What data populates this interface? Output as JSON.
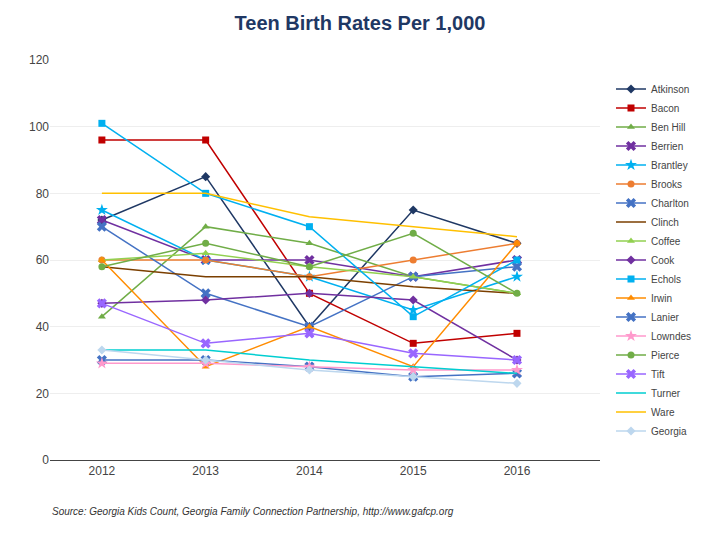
{
  "chart_data": {
    "type": "line",
    "title": "Teen Birth Rates Per 1,000",
    "x": [
      2012,
      2013,
      2014,
      2015,
      2016
    ],
    "series": [
      {
        "name": "Atkinson",
        "color": "#1F3864",
        "marker": "diamond",
        "values": [
          72,
          85,
          40,
          75,
          65
        ]
      },
      {
        "name": "Bacon",
        "color": "#C00000",
        "marker": "square",
        "values": [
          96,
          96,
          50,
          35,
          38
        ]
      },
      {
        "name": "Ben Hill",
        "color": "#70AD47",
        "marker": "triangle-up",
        "values": [
          43,
          70,
          65,
          55,
          50
        ]
      },
      {
        "name": "Berrien",
        "color": "#7030A0",
        "marker": "x",
        "values": [
          72,
          60,
          60,
          55,
          60
        ]
      },
      {
        "name": "Brantley",
        "color": "#00B0F0",
        "marker": "star",
        "values": [
          75,
          60,
          55,
          45,
          55
        ]
      },
      {
        "name": "Brooks",
        "color": "#ED7D31",
        "marker": "circle",
        "values": [
          60,
          60,
          55,
          60,
          65
        ]
      },
      {
        "name": "Charlton",
        "color": "#4472C4",
        "marker": "x",
        "values": [
          70,
          50,
          40,
          55,
          58
        ]
      },
      {
        "name": "Clinch",
        "color": "#7B3F00",
        "marker": "none",
        "values": [
          58,
          55,
          55,
          52,
          50
        ]
      },
      {
        "name": "Coffee",
        "color": "#92D050",
        "marker": "triangle-up",
        "values": [
          60,
          62,
          58,
          55,
          50
        ]
      },
      {
        "name": "Cook",
        "color": "#7030A0",
        "marker": "diamond",
        "values": [
          47,
          48,
          50,
          48,
          30
        ]
      },
      {
        "name": "Echols",
        "color": "#00B0F0",
        "marker": "square",
        "values": [
          101,
          80,
          70,
          43,
          60
        ]
      },
      {
        "name": "Irwin",
        "color": "#FF8C00",
        "marker": "triangle-up",
        "values": [
          60,
          28,
          40,
          28,
          65
        ]
      },
      {
        "name": "Lanier",
        "color": "#4472C4",
        "marker": "x",
        "values": [
          30,
          30,
          28,
          25,
          26
        ]
      },
      {
        "name": "Lowndes",
        "color": "#FF99CC",
        "marker": "star",
        "values": [
          29,
          29,
          28,
          27,
          27
        ]
      },
      {
        "name": "Pierce",
        "color": "#70AD47",
        "marker": "circle",
        "values": [
          58,
          65,
          58,
          68,
          50
        ]
      },
      {
        "name": "Tift",
        "color": "#9966FF",
        "marker": "x",
        "values": [
          47,
          35,
          38,
          32,
          30
        ]
      },
      {
        "name": "Turner",
        "color": "#00CED1",
        "marker": "none",
        "values": [
          33,
          33,
          30,
          28,
          26
        ]
      },
      {
        "name": "Ware",
        "color": "#FFC000",
        "marker": "none",
        "values": [
          80,
          80,
          73,
          70,
          67
        ]
      },
      {
        "name": "Georgia",
        "color": "#BDD7EE",
        "marker": "diamond",
        "values": [
          33,
          30,
          27,
          25,
          23
        ]
      }
    ],
    "xlim": [
      2011.5,
      2016.8
    ],
    "xticks": [
      2012,
      2013,
      2014,
      2015,
      2016
    ],
    "ylim": [
      0,
      120
    ],
    "yticks": [
      0,
      20,
      40,
      60,
      80,
      100,
      120
    ],
    "grid": "y",
    "legend": "right",
    "annotations": [
      "Source: Georgia Kids Count, Georgia Family Connection Partnership, http://www.gafcp.org"
    ]
  }
}
